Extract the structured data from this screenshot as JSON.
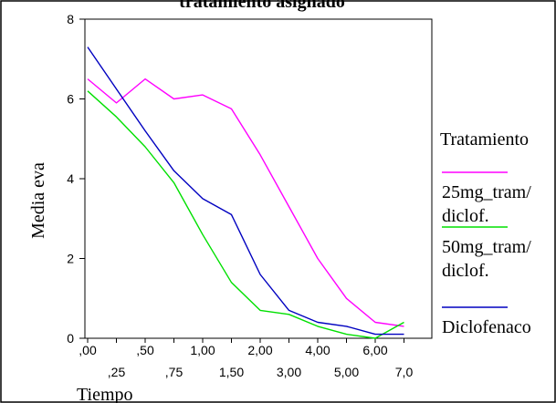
{
  "chart_data": {
    "type": "line",
    "title": "tratamiento asignado",
    "xlabel": "Tiempo",
    "ylabel": "Media eva",
    "x": [
      ".00",
      ".25",
      ".50",
      ".75",
      "1.00",
      "1.50",
      "2.00",
      "3.00",
      "4.00",
      "5.00",
      "6.00",
      "7.00"
    ],
    "x_tick_labels_upper": [
      ",00",
      ",50",
      "1,00",
      "2,00",
      "4,00",
      "6,00"
    ],
    "x_tick_labels_lower": [
      ",25",
      ",75",
      "1,50",
      "3,00",
      "5,00",
      "7,0"
    ],
    "y_ticks": [
      "0",
      "2",
      "4",
      "6",
      "8"
    ],
    "ylim": [
      0,
      8
    ],
    "legend_title": "Tratamiento",
    "legend_position": "right",
    "series": [
      {
        "name_lines": [
          "25mg_tram/",
          "diclof."
        ],
        "color": "#ff00ff",
        "values": [
          6.5,
          5.9,
          6.5,
          6.0,
          6.1,
          5.75,
          4.6,
          3.3,
          2.0,
          1.0,
          0.4,
          0.3
        ]
      },
      {
        "name_lines": [
          "50mg_tram/",
          "diclof."
        ],
        "color": "#00e000",
        "values": [
          6.2,
          5.55,
          4.8,
          3.9,
          2.6,
          1.4,
          0.7,
          0.6,
          0.3,
          0.1,
          0.0,
          0.4
        ]
      },
      {
        "name_lines": [
          "Diclofenaco"
        ],
        "color": "#0000c0",
        "values": [
          7.3,
          6.25,
          5.2,
          4.2,
          3.5,
          3.1,
          1.6,
          0.7,
          0.4,
          0.3,
          0.1,
          0.1
        ]
      }
    ]
  }
}
